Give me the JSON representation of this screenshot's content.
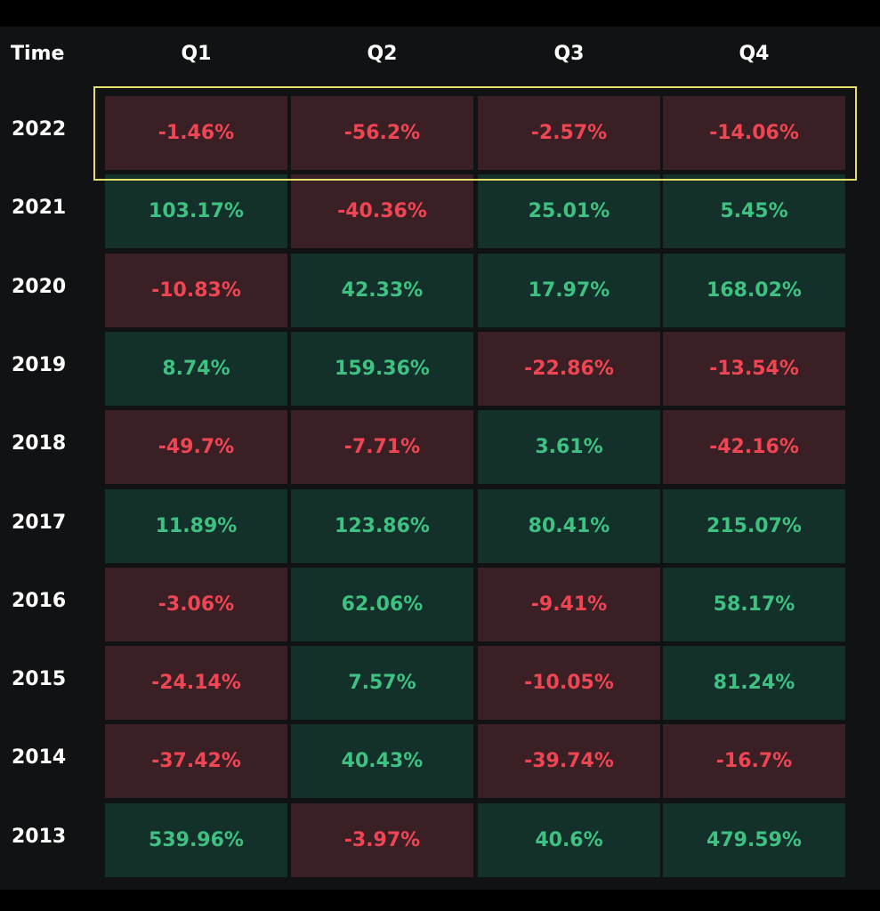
{
  "table": {
    "header": [
      "Time",
      "Q1",
      "Q2",
      "Q3",
      "Q4"
    ],
    "rows": [
      [
        "2022",
        "-1.46%",
        "-56.2%",
        "-2.57%",
        "-14.06%"
      ],
      [
        "2021",
        "103.17%",
        "-40.36%",
        "25.01%",
        "5.45%"
      ],
      [
        "2020",
        "-10.83%",
        "42.33%",
        "17.97%",
        "168.02%"
      ],
      [
        "2019",
        "8.74%",
        "159.36%",
        "-22.86%",
        "-13.54%"
      ],
      [
        "2018",
        "-49.7%",
        "-7.71%",
        "3.61%",
        "-42.16%"
      ],
      [
        "2017",
        "11.89%",
        "123.86%",
        "80.41%",
        "215.07%"
      ],
      [
        "2016",
        "-3.06%",
        "62.06%",
        "-9.41%",
        "58.17%"
      ],
      [
        "2015",
        "-24.14%",
        "7.57%",
        "-10.05%",
        "81.24%"
      ],
      [
        "2014",
        "-37.42%",
        "40.43%",
        "-39.74%",
        "-16.7%"
      ],
      [
        "2013",
        "539.96%",
        "-3.97%",
        "40.6%",
        "479.59%"
      ]
    ]
  }
}
